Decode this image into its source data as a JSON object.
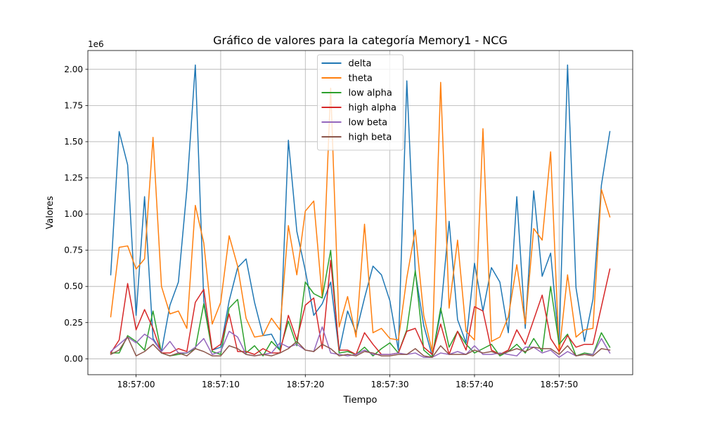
{
  "chart_data": {
    "type": "line",
    "title": "Gráfico de valores para la categoría Memory1 - NCG",
    "xlabel": "Tiempo",
    "ylabel": "Valores",
    "y_offset_text": "1e6",
    "y_scale": 1000000,
    "x_start": "18:56:57",
    "x_step_seconds": 1,
    "xlim": [
      "18:56:54.3",
      "18:57:58.7"
    ],
    "ylim": [
      -110000,
      2130000
    ],
    "x_ticks": [
      "18:57:00",
      "18:57:10",
      "18:57:20",
      "18:57:30",
      "18:57:40",
      "18:57:50"
    ],
    "y_ticks": [
      "0.00",
      "0.25",
      "0.50",
      "0.75",
      "1.00",
      "1.25",
      "1.50",
      "1.75",
      "2.00"
    ],
    "grid": true,
    "legend_position": "upper center",
    "series": [
      {
        "name": "delta",
        "color": "#1f77b4",
        "values": [
          580000,
          1570000,
          1340000,
          300000,
          1120000,
          140000,
          50000,
          370000,
          530000,
          1170000,
          2030000,
          400000,
          60000,
          80000,
          400000,
          630000,
          690000,
          390000,
          160000,
          170000,
          60000,
          1510000,
          880000,
          610000,
          300000,
          380000,
          530000,
          50000,
          330000,
          180000,
          420000,
          640000,
          580000,
          400000,
          60000,
          1920000,
          600000,
          230000,
          20000,
          320000,
          950000,
          270000,
          110000,
          660000,
          330000,
          630000,
          530000,
          180000,
          1120000,
          210000,
          1160000,
          570000,
          730000,
          100000,
          2030000,
          490000,
          120000,
          410000,
          1200000,
          1570000
        ]
      },
      {
        "name": "theta",
        "color": "#ff7f0e",
        "values": [
          290000,
          770000,
          780000,
          620000,
          690000,
          1530000,
          500000,
          310000,
          330000,
          210000,
          1060000,
          800000,
          240000,
          390000,
          850000,
          640000,
          280000,
          150000,
          160000,
          280000,
          200000,
          920000,
          580000,
          1020000,
          1090000,
          420000,
          1870000,
          220000,
          430000,
          150000,
          930000,
          180000,
          210000,
          140000,
          130000,
          560000,
          890000,
          300000,
          50000,
          1910000,
          350000,
          820000,
          190000,
          130000,
          1590000,
          120000,
          150000,
          290000,
          650000,
          240000,
          900000,
          820000,
          1430000,
          40000,
          580000,
          150000,
          200000,
          210000,
          1170000,
          980000
        ]
      },
      {
        "name": "low alpha",
        "color": "#2ca02c",
        "values": [
          40000,
          40000,
          160000,
          120000,
          60000,
          330000,
          40000,
          20000,
          30000,
          40000,
          70000,
          380000,
          50000,
          30000,
          350000,
          410000,
          40000,
          90000,
          20000,
          120000,
          60000,
          260000,
          90000,
          530000,
          450000,
          420000,
          750000,
          40000,
          50000,
          30000,
          80000,
          20000,
          70000,
          110000,
          40000,
          200000,
          610000,
          60000,
          10000,
          350000,
          80000,
          190000,
          100000,
          40000,
          70000,
          100000,
          20000,
          50000,
          100000,
          40000,
          140000,
          50000,
          500000,
          100000,
          170000,
          20000,
          40000,
          30000,
          180000,
          80000
        ]
      },
      {
        "name": "high alpha",
        "color": "#d62728",
        "values": [
          40000,
          130000,
          520000,
          200000,
          340000,
          210000,
          40000,
          40000,
          70000,
          50000,
          390000,
          480000,
          60000,
          100000,
          310000,
          50000,
          50000,
          30000,
          70000,
          40000,
          40000,
          300000,
          130000,
          370000,
          420000,
          70000,
          680000,
          60000,
          60000,
          30000,
          180000,
          100000,
          30000,
          30000,
          40000,
          190000,
          210000,
          80000,
          30000,
          240000,
          30000,
          190000,
          60000,
          360000,
          330000,
          60000,
          30000,
          60000,
          200000,
          100000,
          270000,
          440000,
          140000,
          50000,
          160000,
          80000,
          100000,
          100000,
          360000,
          620000
        ]
      },
      {
        "name": "low beta",
        "color": "#9467bd",
        "values": [
          50000,
          100000,
          150000,
          110000,
          170000,
          130000,
          50000,
          120000,
          40000,
          40000,
          80000,
          140000,
          30000,
          50000,
          190000,
          150000,
          30000,
          20000,
          30000,
          40000,
          110000,
          80000,
          100000,
          60000,
          50000,
          220000,
          40000,
          30000,
          20000,
          30000,
          60000,
          30000,
          30000,
          30000,
          40000,
          30000,
          40000,
          10000,
          10000,
          40000,
          30000,
          50000,
          30000,
          90000,
          30000,
          30000,
          40000,
          30000,
          20000,
          80000,
          80000,
          40000,
          60000,
          10000,
          50000,
          20000,
          30000,
          30000,
          140000,
          40000
        ]
      },
      {
        "name": "high beta",
        "color": "#8c564b",
        "values": [
          30000,
          60000,
          150000,
          20000,
          50000,
          100000,
          40000,
          20000,
          40000,
          20000,
          70000,
          50000,
          20000,
          20000,
          90000,
          70000,
          30000,
          20000,
          30000,
          20000,
          40000,
          70000,
          120000,
          60000,
          50000,
          100000,
          70000,
          20000,
          30000,
          20000,
          50000,
          40000,
          20000,
          20000,
          30000,
          30000,
          70000,
          20000,
          10000,
          90000,
          30000,
          30000,
          30000,
          60000,
          40000,
          50000,
          30000,
          50000,
          70000,
          50000,
          80000,
          70000,
          70000,
          30000,
          90000,
          20000,
          30000,
          20000,
          70000,
          60000
        ]
      }
    ]
  }
}
